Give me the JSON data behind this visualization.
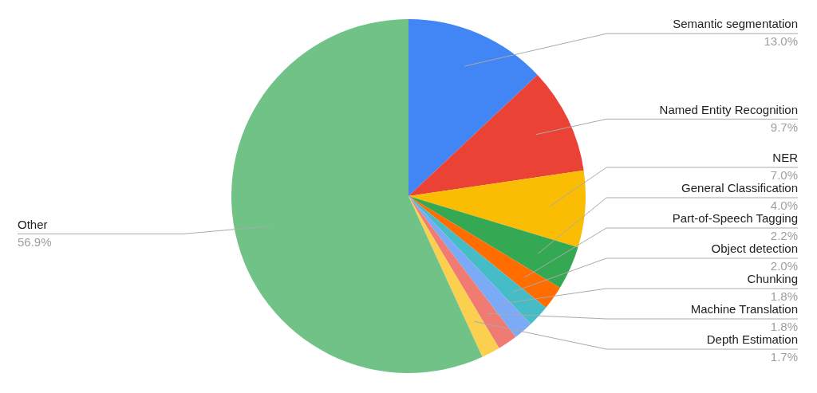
{
  "chart_data": {
    "type": "pie",
    "categories": [
      "Semantic segmentation",
      "Named Entity Recognition",
      "NER",
      "General Classification",
      "Part-of-Speech Tagging",
      "Object detection",
      "Chunking",
      "Machine Translation",
      "Depth Estimation",
      "Other"
    ],
    "values": [
      13.0,
      9.7,
      7.0,
      4.0,
      2.2,
      2.0,
      1.8,
      1.8,
      1.7,
      56.9
    ],
    "value_labels": [
      "13.0%",
      "9.7%",
      "7.0%",
      "4.0%",
      "2.2%",
      "2.0%",
      "1.8%",
      "1.8%",
      "1.7%",
      "56.9%"
    ],
    "colors": [
      "#4285f4",
      "#ea4335",
      "#fbbc04",
      "#34a853",
      "#ff6d01",
      "#46bdc6",
      "#7baaf7",
      "#f07b72",
      "#fcd04f",
      "#71c287"
    ],
    "legend": false
  }
}
